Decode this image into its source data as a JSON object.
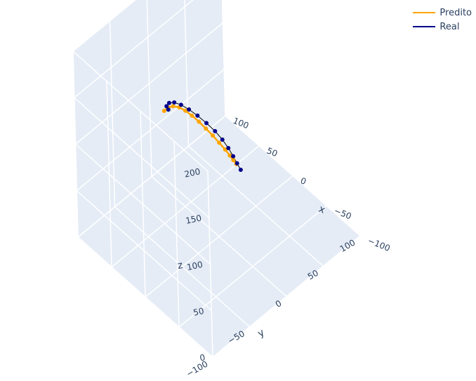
{
  "chart_data": {
    "type": "scatter3d",
    "axes": {
      "x": {
        "title": "x",
        "ticks": [
          "−100",
          "−50",
          "0",
          "50",
          "100"
        ],
        "range": [
          -100,
          100
        ]
      },
      "y": {
        "title": "y",
        "ticks": [
          "−100",
          "−50",
          "0",
          "50",
          "100"
        ],
        "range": [
          -100,
          100
        ]
      },
      "z": {
        "title": "z",
        "ticks": [
          "0",
          "50",
          "100",
          "150",
          "200"
        ],
        "range": [
          0,
          200
        ]
      }
    },
    "colors": {
      "pane": "#e5ecf6",
      "grid": "#ffffff",
      "predito": "#ffa500",
      "real": "#00008b",
      "real_line": "#000000"
    },
    "legend": {
      "placement": "top-right"
    },
    "series": [
      {
        "name": "Predito",
        "points": [
          [
            31.7,
            -40.8,
            141.3
          ],
          [
            35.1,
            -32.6,
            137.5
          ],
          [
            37.4,
            -23.8,
            131.5
          ],
          [
            38.9,
            -14.4,
            123.2
          ],
          [
            40.0,
            -5.3,
            112.9
          ],
          [
            40.3,
            3.6,
            101.6
          ],
          [
            40.0,
            12.3,
            89.6
          ],
          [
            38.9,
            20.4,
            77.5
          ],
          [
            37.4,
            27.9,
            66.2
          ],
          [
            35.1,
            34.1,
            55.9
          ],
          [
            31.7,
            38.9,
            47.6
          ],
          [
            28.3,
            41.9,
            41.5
          ],
          [
            24.9,
            43.4,
            37.8
          ],
          [
            20.4,
            43.4,
            36.3
          ]
        ]
      },
      {
        "name": "Real",
        "points": [
          [
            22.6,
            -43.1,
            150.0
          ],
          [
            30.1,
            -38.9,
            146.1
          ],
          [
            35.9,
            -30.2,
            140.1
          ],
          [
            39.8,
            -20.0,
            131.5
          ],
          [
            41.9,
            -9.2,
            120.6
          ],
          [
            42.6,
            1.7,
            108.0
          ],
          [
            42.3,
            12.6,
            94.5
          ],
          [
            40.6,
            22.7,
            81.0
          ],
          [
            37.8,
            31.4,
            68.4
          ],
          [
            34.2,
            37.7,
            57.5
          ],
          [
            29.7,
            41.4,
            48.9
          ],
          [
            24.3,
            42.8,
            42.7
          ],
          [
            18.4,
            42.6,
            39.0
          ],
          [
            11.3,
            41.0,
            37.6
          ]
        ]
      }
    ]
  }
}
